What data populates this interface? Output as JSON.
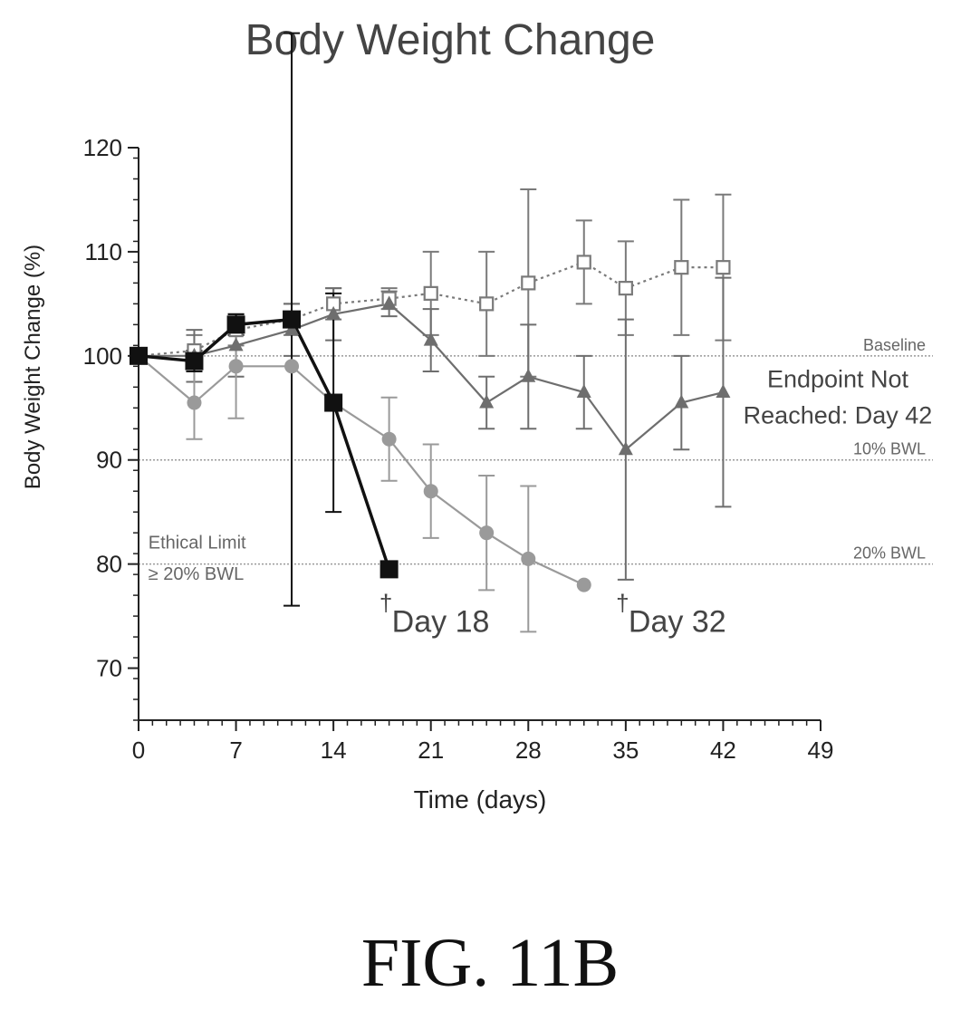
{
  "figure_label": "FIG. 11B",
  "chart_data": {
    "type": "line",
    "title": "Body Weight Change",
    "xlabel": "Time (days)",
    "ylabel": "Body Weight Change (%)",
    "xlim": [
      0,
      49
    ],
    "ylim": [
      65,
      120
    ],
    "xticks": [
      0,
      7,
      14,
      21,
      28,
      35,
      42,
      49
    ],
    "yticks": [
      70,
      80,
      90,
      100,
      110,
      120
    ],
    "grid": false,
    "reference_lines": [
      {
        "y": 100,
        "label": "Baseline"
      },
      {
        "y": 90,
        "label": "10% BWL"
      },
      {
        "y": 80,
        "label": "20% BWL"
      }
    ],
    "annotations": [
      {
        "text": "Ethical Limit",
        "x": 0.7,
        "y": 81.5
      },
      {
        "text": "≥ 20% BWL",
        "x": 0.7,
        "y": 78.5
      },
      {
        "text": "†",
        "x": 17.3,
        "y": 75.5
      },
      {
        "text": "Day 18",
        "x": 18.2,
        "y": 73.5
      },
      {
        "text": "†",
        "x": 34.3,
        "y": 75.5
      },
      {
        "text": "Day 32",
        "x": 35.2,
        "y": 73.5
      },
      {
        "text": "Endpoint Not",
        "x": 42.5,
        "y": 97
      },
      {
        "text": "Reached: Day 42",
        "x": 42.5,
        "y": 93.5
      }
    ],
    "series": [
      {
        "marker": "square-open",
        "line": "dotted",
        "color": "#7a7a7a",
        "points": [
          {
            "x": 0,
            "y": 100,
            "err": 0.5
          },
          {
            "x": 4,
            "y": 100.5,
            "err": 1.5
          },
          {
            "x": 7,
            "y": 102.5,
            "err": 1.5
          },
          {
            "x": 11,
            "y": 103.5,
            "err": 1.5
          },
          {
            "x": 14,
            "y": 105,
            "err": 1.5
          },
          {
            "x": 18,
            "y": 105.5,
            "err": 1.0
          },
          {
            "x": 21,
            "y": 106,
            "err": 4.0
          },
          {
            "x": 25,
            "y": 105,
            "err": 5.0
          },
          {
            "x": 28,
            "y": 107,
            "err": 9.0
          },
          {
            "x": 32,
            "y": 109,
            "err": 4.0
          },
          {
            "x": 35,
            "y": 106.5,
            "err": 4.5
          },
          {
            "x": 39,
            "y": 108.5,
            "err": 6.5
          },
          {
            "x": 42,
            "y": 108.5,
            "err": 7.0
          }
        ]
      },
      {
        "marker": "triangle",
        "line": "solid",
        "color": "#6e6e6e",
        "points": [
          {
            "x": 0,
            "y": 100,
            "err": 0.5
          },
          {
            "x": 4,
            "y": 100,
            "err": 2.5
          },
          {
            "x": 7,
            "y": 101,
            "err": 3.0
          },
          {
            "x": 11,
            "y": 102.5,
            "err": 2.5
          },
          {
            "x": 14,
            "y": 104,
            "err": 2.5
          },
          {
            "x": 18,
            "y": 105,
            "err": 1.2
          },
          {
            "x": 21,
            "y": 101.5,
            "err": 3.0
          },
          {
            "x": 25,
            "y": 95.5,
            "err": 2.5
          },
          {
            "x": 28,
            "y": 98,
            "err": 5.0
          },
          {
            "x": 32,
            "y": 96.5,
            "err": 3.5
          },
          {
            "x": 35,
            "y": 91,
            "err": 12.5
          },
          {
            "x": 39,
            "y": 95.5,
            "err": 4.5
          },
          {
            "x": 42,
            "y": 96.5,
            "err": 11.0
          }
        ]
      },
      {
        "marker": "circle",
        "line": "solid",
        "color": "#9a9a9a",
        "points": [
          {
            "x": 0,
            "y": 100,
            "err": 0.5
          },
          {
            "x": 4,
            "y": 95.5,
            "err": 3.5
          },
          {
            "x": 7,
            "y": 99,
            "err": 5.0
          },
          {
            "x": 11,
            "y": 99,
            "err": 0
          },
          {
            "x": 14,
            "y": 95.5,
            "err": 0
          },
          {
            "x": 18,
            "y": 92,
            "err": 4.0
          },
          {
            "x": 21,
            "y": 87,
            "err": 4.5
          },
          {
            "x": 25,
            "y": 83,
            "err": 5.5
          },
          {
            "x": 28,
            "y": 80.5,
            "err": 7.0
          },
          {
            "x": 32,
            "y": 78,
            "err": 0
          }
        ]
      },
      {
        "marker": "square-filled",
        "line": "solid",
        "color": "#111111",
        "points": [
          {
            "x": 0,
            "y": 100,
            "err": 0.5
          },
          {
            "x": 4,
            "y": 99.5,
            "err": 1.0
          },
          {
            "x": 7,
            "y": 103,
            "err": 1.0
          },
          {
            "x": 11,
            "y": 103.5,
            "err": 27.5
          },
          {
            "x": 14,
            "y": 95.5,
            "err": 10.5
          },
          {
            "x": 18,
            "y": 79.5,
            "err": 0
          }
        ]
      }
    ]
  }
}
